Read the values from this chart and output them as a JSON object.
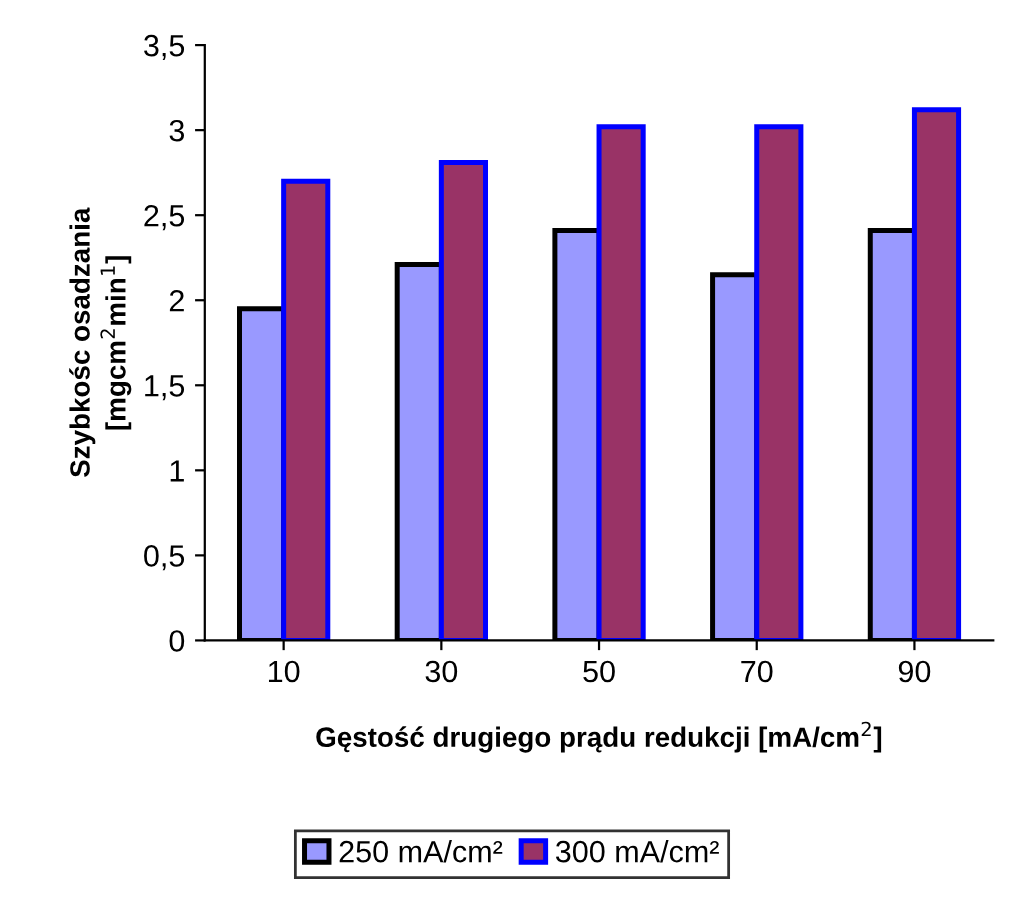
{
  "chart_data": {
    "type": "bar",
    "categories": [
      "10",
      "30",
      "50",
      "70",
      "90"
    ],
    "series": [
      {
        "name": "250 mA/cm²",
        "color": "#9999ff",
        "values": [
          1.95,
          2.21,
          2.41,
          2.15,
          2.41
        ]
      },
      {
        "name": "300 mA/cm²",
        "color": "#993366",
        "values": [
          2.7,
          2.81,
          3.02,
          3.02,
          3.12
        ]
      }
    ],
    "xlabel": "Gęstość drugiego prądu redukcji [mA/cm$^{2}$]",
    "ylabel": "Szybkośc osadzania\n[mgcm$^{2}$min$^{1}$]",
    "ylim": [
      0,
      3.5
    ],
    "yticks": [
      {
        "value": 0,
        "label": "0"
      },
      {
        "value": 0.5,
        "label": "0,5"
      },
      {
        "value": 1,
        "label": "1"
      },
      {
        "value": 1.5,
        "label": "1,5"
      },
      {
        "value": 2,
        "label": "2"
      },
      {
        "value": 2.5,
        "label": "2,5"
      },
      {
        "value": 3,
        "label": "3"
      },
      {
        "value": 3.5,
        "label": "3,5"
      }
    ],
    "legend": "bottom"
  }
}
